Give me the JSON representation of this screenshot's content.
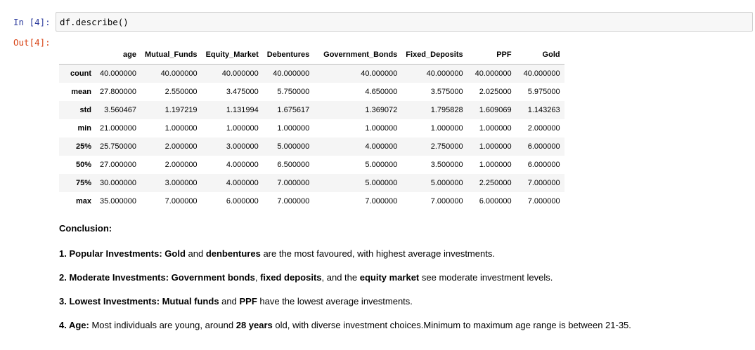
{
  "input_cell": {
    "prompt": "In [4]:",
    "code": "df.describe()"
  },
  "output_cell": {
    "prompt": "Out[4]:"
  },
  "table": {
    "columns": [
      "age",
      "Mutual_Funds",
      "Equity_Market",
      "Debentures",
      "Government_Bonds",
      "Fixed_Deposits",
      "PPF",
      "Gold"
    ],
    "rows": [
      {
        "label": "count",
        "values": [
          "40.000000",
          "40.000000",
          "40.000000",
          "40.000000",
          "40.000000",
          "40.000000",
          "40.000000",
          "40.000000"
        ]
      },
      {
        "label": "mean",
        "values": [
          "27.800000",
          "2.550000",
          "3.475000",
          "5.750000",
          "4.650000",
          "3.575000",
          "2.025000",
          "5.975000"
        ]
      },
      {
        "label": "std",
        "values": [
          "3.560467",
          "1.197219",
          "1.131994",
          "1.675617",
          "1.369072",
          "1.795828",
          "1.609069",
          "1.143263"
        ]
      },
      {
        "label": "min",
        "values": [
          "21.000000",
          "1.000000",
          "1.000000",
          "1.000000",
          "1.000000",
          "1.000000",
          "1.000000",
          "2.000000"
        ]
      },
      {
        "label": "25%",
        "values": [
          "25.750000",
          "2.000000",
          "3.000000",
          "5.000000",
          "4.000000",
          "2.750000",
          "1.000000",
          "6.000000"
        ]
      },
      {
        "label": "50%",
        "values": [
          "27.000000",
          "2.000000",
          "4.000000",
          "6.500000",
          "5.000000",
          "3.500000",
          "1.000000",
          "6.000000"
        ]
      },
      {
        "label": "75%",
        "values": [
          "30.000000",
          "3.000000",
          "4.000000",
          "7.000000",
          "5.000000",
          "5.000000",
          "2.250000",
          "7.000000"
        ]
      },
      {
        "label": "max",
        "values": [
          "35.000000",
          "7.000000",
          "6.000000",
          "7.000000",
          "7.000000",
          "7.000000",
          "6.000000",
          "7.000000"
        ]
      }
    ]
  },
  "conclusion": {
    "heading": "Conclusion:",
    "point1": {
      "title": "1. Popular Investments:",
      "b1": "Gold",
      "t1": " and ",
      "b2": "denbentures",
      "t2": " are the most favoured, with highest average investments."
    },
    "point2": {
      "title": "2. Moderate Investments:",
      "b1": "Government bonds",
      "t1": ", ",
      "b2": "fixed deposits",
      "t2": ", and the ",
      "b3": "equity market",
      "t3": " see moderate investment levels."
    },
    "point3": {
      "title": "3. Lowest Investments:",
      "b1": "Mutual funds",
      "t1": " and ",
      "b2": "PPF",
      "t2": " have the lowest average investments."
    },
    "point4": {
      "title": "4. Age:",
      "t1": " Most individuals are young, around ",
      "b1": "28 years",
      "t2": " old, with diverse investment choices.Minimum to maximum age range is between 21-35."
    }
  }
}
